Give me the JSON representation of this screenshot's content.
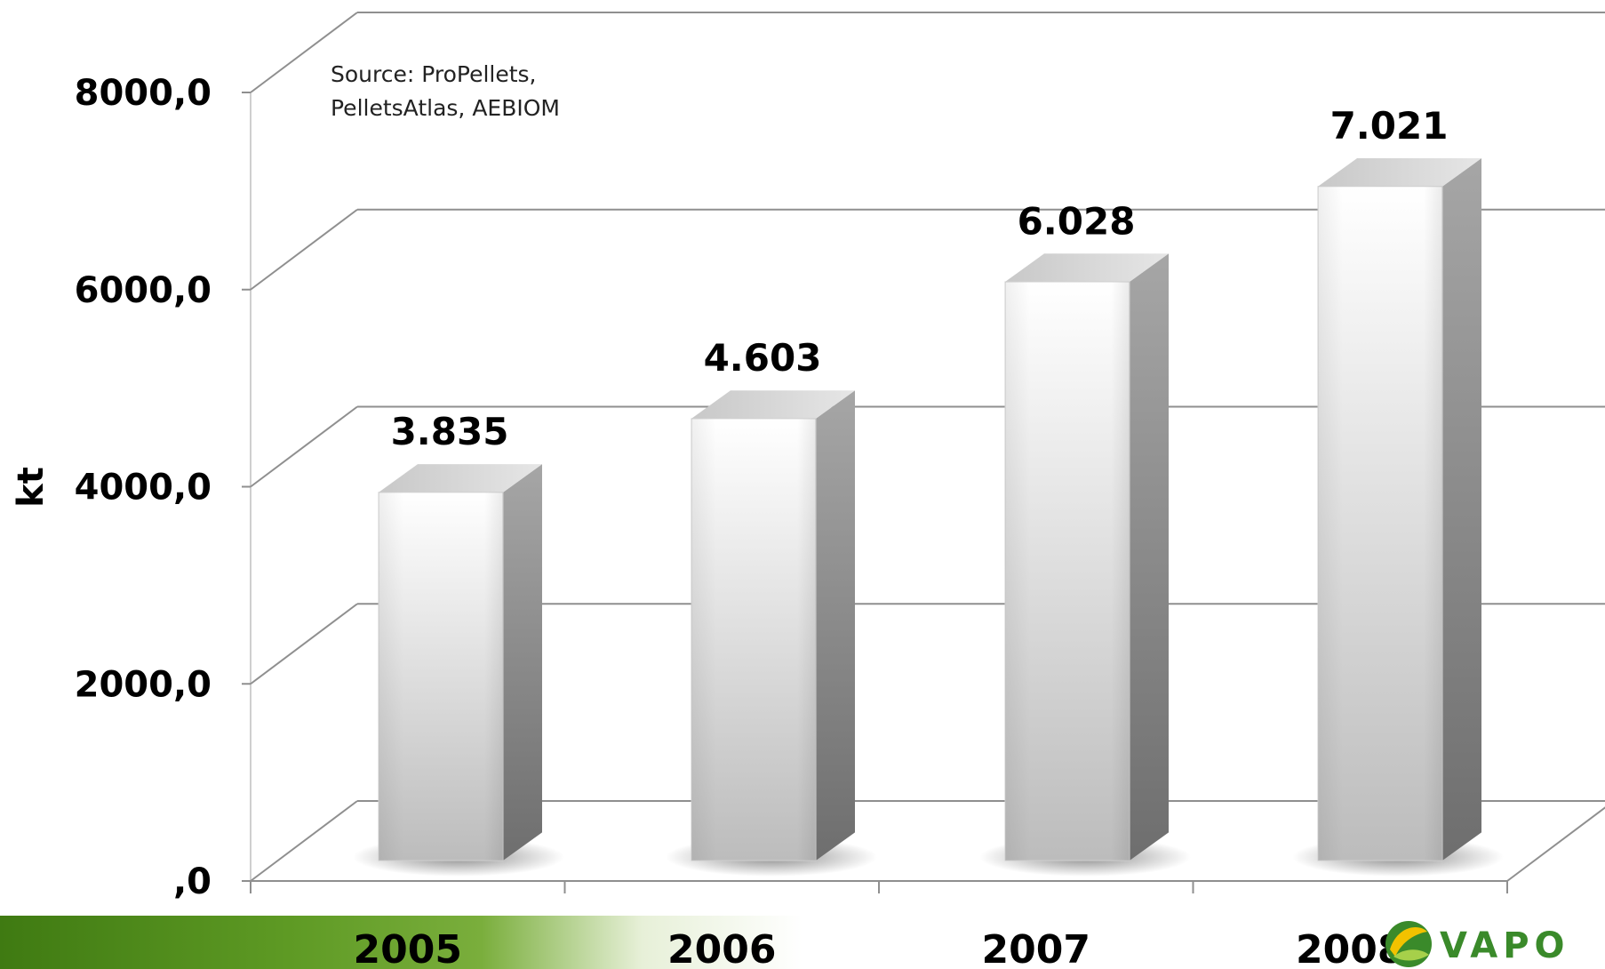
{
  "chart_data": {
    "type": "bar",
    "categories": [
      "2005",
      "2006",
      "2007",
      "2008"
    ],
    "values": [
      3835,
      4603,
      6028,
      7021
    ],
    "value_labels": [
      "3.835",
      "4.603",
      "6.028",
      "7.021"
    ],
    "ylabel": "kt",
    "ylim": [
      0,
      8000
    ],
    "yticks": [
      {
        "value": 0,
        "label": ",0"
      },
      {
        "value": 2000,
        "label": "2000,0"
      },
      {
        "value": 4000,
        "label": "4000,0"
      },
      {
        "value": 6000,
        "label": "6000,0"
      },
      {
        "value": 8000,
        "label": "8000,0"
      }
    ],
    "grid": true,
    "legend": "none",
    "style": "3d-column"
  },
  "annotation": {
    "source_line1": "Source: ProPellets,",
    "source_line2": "PelletsAtlas, AEBIOM"
  },
  "logo": {
    "text": "VAPO"
  },
  "colors": {
    "bar_front_light": "#fafafa",
    "bar_front_dark": "#bdbdbd",
    "bar_side": "#8c8c8c",
    "bar_top": "#d6d6d6",
    "gridline": "#8f8f8f",
    "footer_green": "#4f8a1e",
    "logo_green": "#3a8a2a"
  }
}
